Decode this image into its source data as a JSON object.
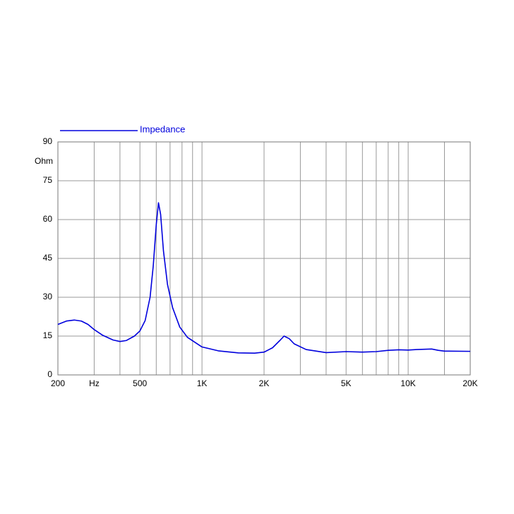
{
  "chart_data": {
    "type": "line",
    "xscale": "log",
    "ylabel": "Ohm",
    "xlim": [
      200,
      20000
    ],
    "ylim": [
      0,
      90
    ],
    "xticks": [
      200,
      {
        "value": 300,
        "label": "Hz"
      },
      500,
      {
        "value": 1000,
        "label": "1K"
      },
      {
        "value": 2000,
        "label": "2K"
      },
      {
        "value": 5000,
        "label": "5K"
      },
      {
        "value": 10000,
        "label": "10K"
      },
      {
        "value": 20000,
        "label": "20K"
      }
    ],
    "xminor": [
      400,
      600,
      700,
      800,
      900,
      3000,
      4000,
      6000,
      7000,
      8000,
      9000,
      15000
    ],
    "yticks": [
      0,
      15,
      30,
      45,
      60,
      75,
      90
    ],
    "grid": true,
    "series": [
      {
        "name": "Impedance",
        "color": "#0000dd",
        "x": [
          200,
          220,
          240,
          260,
          280,
          300,
          330,
          370,
          400,
          430,
          470,
          500,
          530,
          560,
          580,
          600,
          615,
          630,
          650,
          680,
          720,
          780,
          850,
          1000,
          1200,
          1500,
          1800,
          2000,
          2200,
          2400,
          2500,
          2650,
          2800,
          3200,
          4000,
          5000,
          6000,
          7000,
          8000,
          9000,
          10000,
          11000,
          13000,
          14000,
          15000,
          20000
        ],
        "values": [
          19.5,
          20.8,
          21.2,
          20.8,
          19.5,
          17.5,
          15.3,
          13.5,
          12.9,
          13.3,
          15,
          17,
          21,
          30,
          42,
          58,
          66.5,
          62,
          48,
          35,
          26,
          18.5,
          14.5,
          10.8,
          9.3,
          8.5,
          8.4,
          8.8,
          10.5,
          13.5,
          15,
          14,
          12,
          9.8,
          8.6,
          9.0,
          8.8,
          9.0,
          9.5,
          9.7,
          9.6,
          9.8,
          10,
          9.5,
          9.2,
          9.1
        ]
      }
    ]
  }
}
